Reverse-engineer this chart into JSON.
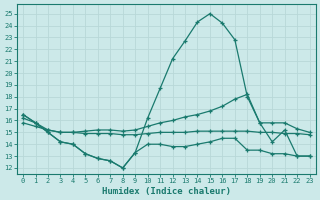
{
  "xlabel": "Humidex (Indice chaleur)",
  "xlim": [
    -0.5,
    23.5
  ],
  "ylim": [
    11.5,
    25.8
  ],
  "yticks": [
    12,
    13,
    14,
    15,
    16,
    17,
    18,
    19,
    20,
    21,
    22,
    23,
    24,
    25
  ],
  "xticks": [
    0,
    1,
    2,
    3,
    4,
    5,
    6,
    7,
    8,
    9,
    10,
    11,
    12,
    13,
    14,
    15,
    16,
    17,
    18,
    19,
    20,
    21,
    22,
    23
  ],
  "bg_color": "#cce9e9",
  "line_color": "#1a7a6e",
  "grid_color": "#b8d8d8",
  "series_top": [
    16.5,
    15.8,
    15.0,
    14.2,
    14.0,
    13.2,
    12.8,
    12.6,
    12.0,
    13.3,
    16.2,
    18.7,
    21.2,
    22.7,
    24.3,
    25.0,
    24.2,
    22.8,
    18.0,
    15.8,
    14.2,
    15.2,
    13.0,
    13.0
  ],
  "series_avg": [
    16.2,
    15.8,
    15.2,
    15.0,
    15.0,
    15.1,
    15.2,
    15.2,
    15.1,
    15.2,
    15.5,
    15.8,
    16.0,
    16.3,
    16.5,
    16.8,
    17.2,
    17.8,
    18.2,
    15.8,
    15.8,
    15.8,
    15.3,
    15.0
  ],
  "series_flat": [
    15.8,
    15.5,
    15.2,
    15.0,
    15.0,
    14.9,
    14.9,
    14.9,
    14.8,
    14.8,
    14.9,
    15.0,
    15.0,
    15.0,
    15.1,
    15.1,
    15.1,
    15.1,
    15.1,
    15.0,
    15.0,
    14.9,
    14.9,
    14.8
  ],
  "series_bot": [
    16.5,
    15.8,
    15.0,
    14.2,
    14.0,
    13.2,
    12.8,
    12.6,
    12.0,
    13.3,
    14.0,
    14.0,
    13.8,
    13.8,
    14.0,
    14.2,
    14.5,
    14.5,
    13.5,
    13.5,
    13.2,
    13.2,
    13.0,
    13.0
  ]
}
